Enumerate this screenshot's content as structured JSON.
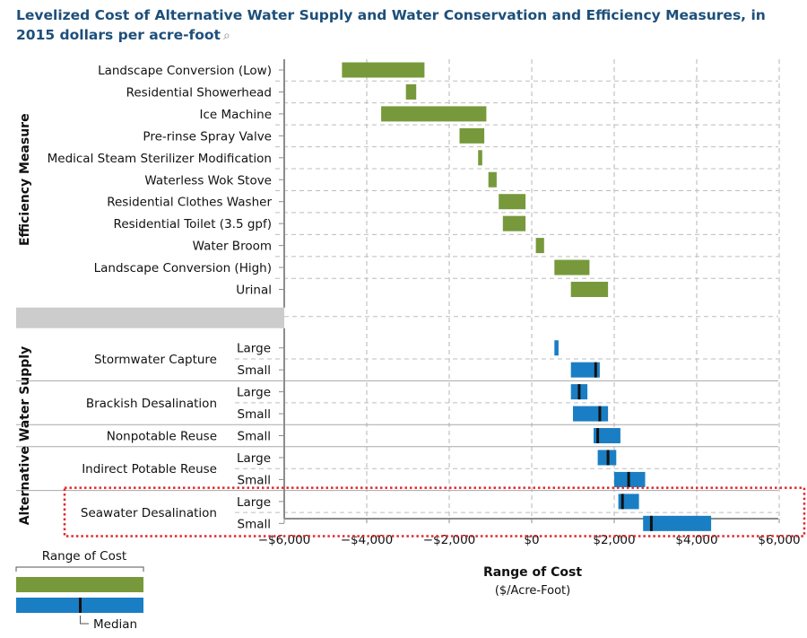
{
  "title": "Levelized Cost of Alternative Water Supply and Water Conservation and Efficiency Measures, in 2015 dollars per acre-foot",
  "title_icon": "magnifier-icon",
  "colors": {
    "efficiency": "#77993b",
    "supply": "#1a7ec4",
    "median": "#111111",
    "highlight": "#e2272a",
    "divider": "#cccccc"
  },
  "chart_data": {
    "type": "bar",
    "orientation": "horizontal",
    "subtype": "floating-range",
    "xlabel": "Range of Cost",
    "xlabel_units": "($/Acre-Foot)",
    "xlim": [
      -6000,
      6000
    ],
    "xticks": [
      -6000,
      -4000,
      -2000,
      0,
      2000,
      4000,
      6000
    ],
    "xtick_labels": [
      "−$6,000",
      "−$4,000",
      "−$2,000",
      "$0",
      "$2,000",
      "$4,000",
      "$6,000"
    ],
    "grid": "vertical dashed at ticks, horizontal dashed per row",
    "groups": [
      {
        "name": "Efficiency Measure",
        "color_key": "efficiency",
        "rows": [
          {
            "label": "Landscape Conversion (Low)",
            "min": -4600,
            "max": -2600
          },
          {
            "label": "Residential Showerhead",
            "min": -3050,
            "max": -2800
          },
          {
            "label": "Ice Machine",
            "min": -3650,
            "max": -1100
          },
          {
            "label": "Pre-rinse Spray Valve",
            "min": -1750,
            "max": -1150
          },
          {
            "label": "Medical Steam Sterilizer Modification",
            "min": -1300,
            "max": -1200
          },
          {
            "label": "Waterless Wok Stove",
            "min": -1050,
            "max": -850
          },
          {
            "label": "Residential Clothes Washer",
            "min": -800,
            "max": -150
          },
          {
            "label": "Residential Toilet (3.5 gpf)",
            "min": -700,
            "max": -150
          },
          {
            "label": "Water Broom",
            "min": 100,
            "max": 300
          },
          {
            "label": "Landscape Conversion (High)",
            "min": 550,
            "max": 1400
          },
          {
            "label": "Urinal",
            "min": 950,
            "max": 1850
          }
        ]
      },
      {
        "name": "Alternative Water Supply",
        "color_key": "supply",
        "categories": [
          {
            "name": "Stormwater Capture",
            "rows": [
              {
                "size": "Large",
                "min": 550,
                "max": 650,
                "median": null
              },
              {
                "size": "Small",
                "min": 950,
                "max": 1650,
                "median": 1550
              }
            ]
          },
          {
            "name": "Brackish Desalination",
            "rows": [
              {
                "size": "Large",
                "min": 950,
                "max": 1350,
                "median": 1150
              },
              {
                "size": "Small",
                "min": 1000,
                "max": 1850,
                "median": 1650
              }
            ]
          },
          {
            "name": "Nonpotable Reuse",
            "rows": [
              {
                "size": "Small",
                "min": 1500,
                "max": 2150,
                "median": 1600
              }
            ]
          },
          {
            "name": "Indirect Potable Reuse",
            "rows": [
              {
                "size": "Large",
                "min": 1600,
                "max": 2050,
                "median": 1850
              },
              {
                "size": "Small",
                "min": 2000,
                "max": 2750,
                "median": 2350
              }
            ]
          },
          {
            "name": "Seawater Desalination",
            "highlighted": true,
            "rows": [
              {
                "size": "Large",
                "min": 2100,
                "max": 2600,
                "median": 2200
              },
              {
                "size": "Small",
                "min": 2700,
                "max": 4350,
                "median": 2900
              }
            ]
          }
        ]
      }
    ],
    "legend": {
      "placement": "bottom-left",
      "range_label": "Range of Cost",
      "median_label": "Median"
    }
  }
}
